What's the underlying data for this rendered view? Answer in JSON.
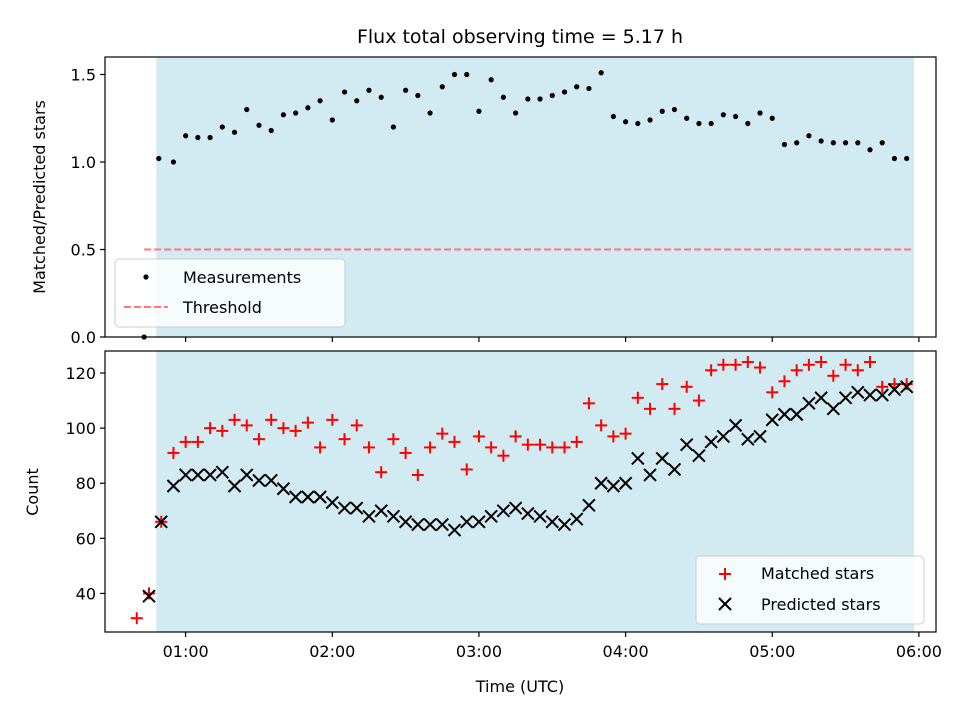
{
  "chart_data": [
    {
      "type": "scatter",
      "title": "Flux total observing time = 5.17 h",
      "xlabel": "",
      "ylabel": "Matched/Predicted stars",
      "xlim": [
        "00:27",
        "06:07"
      ],
      "ylim": [
        0,
        1.6
      ],
      "yticks": [
        "0.0",
        "0.5",
        "1.0",
        "1.5"
      ],
      "shaded_span": [
        "00:48",
        "05:58"
      ],
      "shade_color": "#add8e6",
      "legend": {
        "position": "lower-left",
        "entries": [
          "Measurements",
          "Threshold"
        ]
      },
      "threshold": {
        "name": "Threshold",
        "value": 0.5,
        "x_range": [
          "00:43",
          "05:58"
        ],
        "color": "#ff7777"
      },
      "series": [
        {
          "name": "Measurements",
          "color": "#000000",
          "x": [
            "00:43",
            "00:49",
            "00:55",
            "01:00",
            "01:05",
            "01:10",
            "01:15",
            "01:20",
            "01:25",
            "01:30",
            "01:35",
            "01:40",
            "01:45",
            "01:50",
            "01:55",
            "02:00",
            "02:05",
            "02:10",
            "02:15",
            "02:20",
            "02:25",
            "02:30",
            "02:35",
            "02:40",
            "02:45",
            "02:50",
            "02:55",
            "03:00",
            "03:05",
            "03:10",
            "03:15",
            "03:20",
            "03:25",
            "03:30",
            "03:35",
            "03:40",
            "03:45",
            "03:50",
            "03:55",
            "04:00",
            "04:05",
            "04:10",
            "04:15",
            "04:20",
            "04:25",
            "04:30",
            "04:35",
            "04:40",
            "04:45",
            "04:50",
            "04:55",
            "05:00",
            "05:05",
            "05:10",
            "05:15",
            "05:20",
            "05:25",
            "05:30",
            "05:35",
            "05:40",
            "05:45",
            "05:50",
            "05:55"
          ],
          "y": [
            0.0,
            1.02,
            1.0,
            1.15,
            1.14,
            1.14,
            1.2,
            1.17,
            1.3,
            1.21,
            1.18,
            1.27,
            1.28,
            1.31,
            1.35,
            1.24,
            1.4,
            1.35,
            1.41,
            1.37,
            1.2,
            1.41,
            1.38,
            1.28,
            1.43,
            1.5,
            1.5,
            1.29,
            1.47,
            1.37,
            1.28,
            1.36,
            1.36,
            1.38,
            1.4,
            1.43,
            1.42,
            1.51,
            1.26,
            1.23,
            1.22,
            1.24,
            1.29,
            1.3,
            1.25,
            1.22,
            1.22,
            1.27,
            1.26,
            1.22,
            1.28,
            1.25,
            1.1,
            1.11,
            1.15,
            1.12,
            1.11,
            1.11,
            1.11,
            1.07,
            1.11,
            1.02,
            1.02
          ]
        }
      ]
    },
    {
      "type": "scatter",
      "title": "",
      "xlabel": "Time (UTC)",
      "ylabel": "Count",
      "xlim": [
        "00:27",
        "06:07"
      ],
      "ylim": [
        26,
        128
      ],
      "xticks": [
        "01:00",
        "02:00",
        "03:00",
        "04:00",
        "05:00",
        "06:00"
      ],
      "yticks": [
        "40",
        "60",
        "80",
        "100",
        "120"
      ],
      "shaded_span": [
        "00:48",
        "05:58"
      ],
      "shade_color": "#add8e6",
      "legend": {
        "position": "lower-right",
        "entries": [
          "Matched stars",
          "Predicted stars"
        ]
      },
      "series": [
        {
          "name": "Matched stars",
          "marker": "plus",
          "color": "#ff0000",
          "x": [
            "00:40",
            "00:45",
            "00:50",
            "00:55",
            "01:00",
            "01:05",
            "01:10",
            "01:15",
            "01:20",
            "01:25",
            "01:30",
            "01:35",
            "01:40",
            "01:45",
            "01:50",
            "01:55",
            "02:00",
            "02:05",
            "02:10",
            "02:15",
            "02:20",
            "02:25",
            "02:30",
            "02:35",
            "02:40",
            "02:45",
            "02:50",
            "02:55",
            "03:00",
            "03:05",
            "03:10",
            "03:15",
            "03:20",
            "03:25",
            "03:30",
            "03:35",
            "03:40",
            "03:45",
            "03:50",
            "03:55",
            "04:00",
            "04:05",
            "04:10",
            "04:15",
            "04:20",
            "04:25",
            "04:30",
            "04:35",
            "04:40",
            "04:45",
            "04:50",
            "04:55",
            "05:00",
            "05:05",
            "05:10",
            "05:15",
            "05:20",
            "05:25",
            "05:30",
            "05:35",
            "05:40",
            "05:45",
            "05:50",
            "05:55"
          ],
          "y": [
            31,
            40,
            66,
            91,
            95,
            95,
            100,
            99,
            103,
            101,
            96,
            103,
            100,
            99,
            102,
            93,
            103,
            96,
            101,
            93,
            84,
            96,
            91,
            83,
            93,
            98,
            95,
            85,
            97,
            93,
            90,
            97,
            94,
            94,
            93,
            93,
            95,
            109,
            101,
            97,
            98,
            111,
            107,
            116,
            107,
            115,
            110,
            121,
            123,
            123,
            124,
            122,
            113,
            117,
            121,
            123,
            124,
            119,
            123,
            121,
            124,
            115,
            116,
            116
          ]
        },
        {
          "name": "Predicted stars",
          "marker": "x",
          "color": "#000000",
          "x": [
            "00:45",
            "00:50",
            "00:55",
            "01:00",
            "01:05",
            "01:10",
            "01:15",
            "01:20",
            "01:25",
            "01:30",
            "01:35",
            "01:40",
            "01:45",
            "01:50",
            "01:55",
            "02:00",
            "02:05",
            "02:10",
            "02:15",
            "02:20",
            "02:25",
            "02:30",
            "02:35",
            "02:40",
            "02:45",
            "02:50",
            "02:55",
            "03:00",
            "03:05",
            "03:10",
            "03:15",
            "03:20",
            "03:25",
            "03:30",
            "03:35",
            "03:40",
            "03:45",
            "03:50",
            "03:55",
            "04:00",
            "04:05",
            "04:10",
            "04:15",
            "04:20",
            "04:25",
            "04:30",
            "04:35",
            "04:40",
            "04:45",
            "04:50",
            "04:55",
            "05:00",
            "05:05",
            "05:10",
            "05:15",
            "05:20",
            "05:25",
            "05:30",
            "05:35",
            "05:40",
            "05:45",
            "05:50",
            "05:55"
          ],
          "y": [
            39,
            66,
            79,
            83,
            83,
            83,
            84,
            79,
            83,
            81,
            81,
            78,
            75,
            75,
            75,
            73,
            71,
            71,
            68,
            70,
            68,
            66,
            65,
            65,
            65,
            63,
            66,
            66,
            68,
            70,
            71,
            69,
            68,
            66,
            65,
            67,
            72,
            80,
            79,
            80,
            89,
            83,
            89,
            85,
            94,
            90,
            95,
            97,
            101,
            96,
            97,
            103,
            105,
            105,
            109,
            111,
            107,
            111,
            113,
            112,
            112,
            114,
            115
          ]
        }
      ]
    }
  ]
}
